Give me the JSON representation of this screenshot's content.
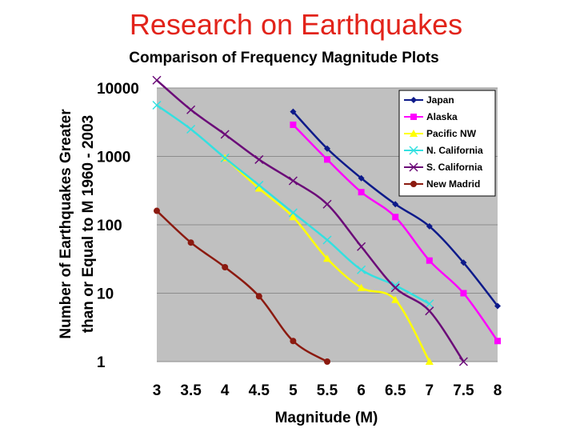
{
  "slide": {
    "title": "Research on Earthquakes"
  },
  "chart_data": {
    "type": "line",
    "title": "Comparison of Frequency Magnitude Plots",
    "xlabel": "Magnitude (M)",
    "ylabel": [
      "Number of Earthquakes Greater",
      "than or Equal to M 1960 - 2003"
    ],
    "x_ticks": [
      "3",
      "3.5",
      "4",
      "4.5",
      "5",
      "5.5",
      "6",
      "6.5",
      "7",
      "7.5",
      "8"
    ],
    "y_ticks": [
      "1",
      "10",
      "100",
      "1000",
      "10000"
    ],
    "xlim": [
      3,
      8
    ],
    "ylim": [
      1,
      10000
    ],
    "y_scale": "log",
    "grid": "horizontal",
    "legend_position": "top-right",
    "series": [
      {
        "name": "Japan",
        "color": "#0d1a8a",
        "marker": "diamond",
        "x": [
          5,
          5.5,
          6,
          6.5,
          7,
          7.5,
          8
        ],
        "y": [
          4500,
          1300,
          480,
          200,
          95,
          28,
          6.5
        ]
      },
      {
        "name": "Alaska",
        "color": "#ff00ff",
        "marker": "square",
        "x": [
          5,
          5.5,
          6,
          6.5,
          7,
          7.5,
          8
        ],
        "y": [
          2900,
          900,
          300,
          130,
          30,
          10,
          2
        ]
      },
      {
        "name": "Pacific NW",
        "color": "#ffff00",
        "marker": "triangle",
        "x": [
          4,
          4.5,
          5,
          5.5,
          6,
          6.5,
          7
        ],
        "y": [
          950,
          340,
          130,
          32,
          12,
          8,
          1
        ]
      },
      {
        "name": "N. California",
        "color": "#33e0e0",
        "marker": "x",
        "x": [
          3,
          3.5,
          4,
          4.5,
          5,
          5.5,
          6,
          6.5,
          7
        ],
        "y": [
          5600,
          2500,
          950,
          380,
          150,
          60,
          22,
          13,
          7
        ]
      },
      {
        "name": "S. California",
        "color": "#6b0a78",
        "marker": "x",
        "x": [
          3,
          3.5,
          4,
          4.5,
          5,
          5.5,
          6,
          6.5,
          7,
          7.5
        ],
        "y": [
          13000,
          4800,
          2100,
          900,
          440,
          200,
          48,
          12,
          5.5,
          1
        ]
      },
      {
        "name": "New Madrid",
        "color": "#8b1a10",
        "marker": "circle",
        "x": [
          3,
          3.5,
          4,
          4.5,
          5,
          5.5
        ],
        "y": [
          160,
          55,
          24,
          9,
          2,
          1
        ]
      }
    ]
  }
}
